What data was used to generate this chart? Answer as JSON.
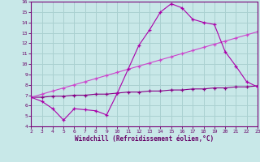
{
  "xlabel": "Windchill (Refroidissement éolien,°C)",
  "bg_color": "#c8e8e8",
  "grid_color": "#aad0d0",
  "line_color_1": "#aa00aa",
  "line_color_2": "#880088",
  "line_color_3": "#cc44cc",
  "xlim": [
    2,
    23
  ],
  "ylim": [
    4,
    16
  ],
  "xticks": [
    2,
    3,
    4,
    5,
    6,
    7,
    8,
    9,
    10,
    11,
    12,
    13,
    14,
    15,
    16,
    17,
    18,
    19,
    20,
    21,
    22,
    23
  ],
  "yticks": [
    4,
    5,
    6,
    7,
    8,
    9,
    10,
    11,
    12,
    13,
    14,
    15,
    16
  ],
  "line1_x": [
    2,
    3,
    4,
    5,
    6,
    7,
    8,
    9,
    10,
    11,
    12,
    13,
    14,
    15,
    16,
    17,
    18,
    19,
    20,
    21,
    22,
    23
  ],
  "line1_y": [
    6.8,
    6.4,
    5.7,
    4.6,
    5.7,
    5.6,
    5.5,
    5.1,
    7.2,
    9.5,
    11.8,
    13.3,
    15.0,
    15.8,
    15.4,
    14.3,
    14.0,
    13.8,
    11.2,
    9.8,
    8.3,
    7.8
  ],
  "line2_x": [
    2,
    3,
    4,
    5,
    6,
    7,
    8,
    9,
    10,
    11,
    12,
    13,
    14,
    15,
    16,
    17,
    18,
    19,
    20,
    21,
    22,
    23
  ],
  "line2_y": [
    6.8,
    6.8,
    6.9,
    6.9,
    7.0,
    7.0,
    7.1,
    7.1,
    7.2,
    7.3,
    7.3,
    7.4,
    7.4,
    7.5,
    7.5,
    7.6,
    7.6,
    7.7,
    7.7,
    7.8,
    7.8,
    7.9
  ],
  "line3_x": [
    2,
    3,
    4,
    5,
    6,
    7,
    8,
    9,
    10,
    11,
    12,
    13,
    14,
    15,
    16,
    17,
    18,
    19,
    20,
    21,
    22,
    23
  ],
  "line3_y": [
    6.8,
    7.1,
    7.4,
    7.7,
    8.0,
    8.3,
    8.6,
    8.9,
    9.2,
    9.5,
    9.8,
    10.1,
    10.4,
    10.7,
    11.0,
    11.3,
    11.6,
    11.9,
    12.2,
    12.5,
    12.8,
    13.1
  ]
}
